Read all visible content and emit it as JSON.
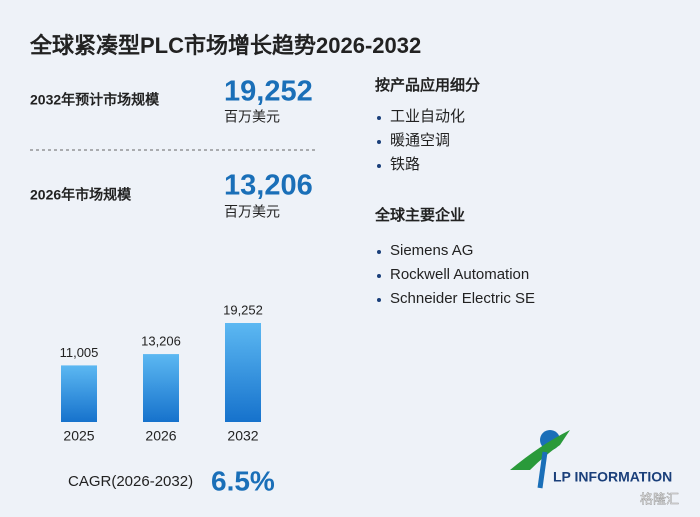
{
  "header": {
    "title": "全球紧凑型PLC市场增长趋势2026-2032"
  },
  "stats": [
    {
      "label": "2032年预计市场规模",
      "value": "19,252",
      "unit": "百万美元"
    },
    {
      "label": "2026年市场规模",
      "value": "13,206",
      "unit": "百万美元"
    }
  ],
  "segments": {
    "title": "按产品应用细分",
    "items": [
      "工业自动化",
      "暖通空调",
      "铁路"
    ]
  },
  "companies": {
    "title": "全球主要企业",
    "items": [
      "Siemens AG",
      "Rockwell Automation",
      "Schneider Electric SE"
    ]
  },
  "cagr": {
    "label": "CAGR(2026-2032)",
    "value": "6.5%"
  },
  "logo": {
    "text": "LP INFORMATION"
  },
  "watermark": {
    "text": "格隆汇"
  },
  "chart_data": {
    "type": "bar",
    "categories": [
      "2025",
      "2026",
      "2032"
    ],
    "values": [
      11005,
      13206,
      19252
    ],
    "value_labels": [
      "11,005",
      "13,206",
      "19,252"
    ],
    "color": "#2a8ae0"
  }
}
